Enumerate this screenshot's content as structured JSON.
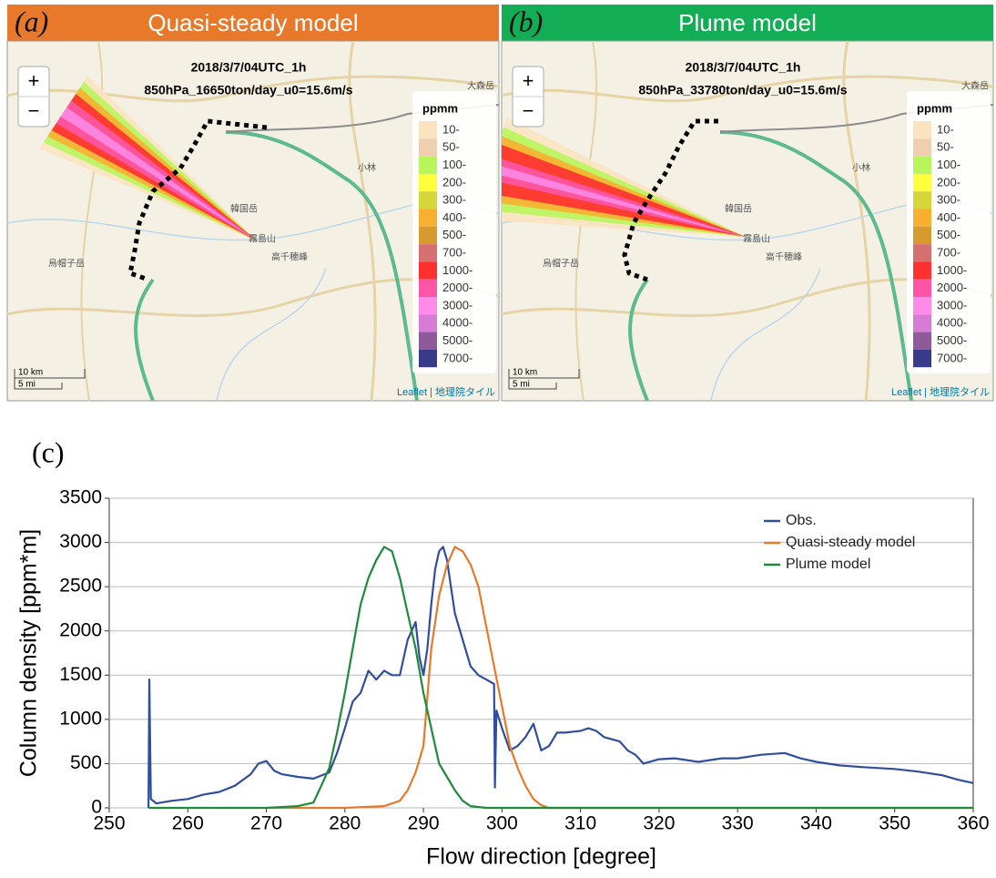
{
  "panels": [
    {
      "label": "(a)",
      "title": "Quasi-steady model",
      "header_color": "#e8792a",
      "line1": "2018/3/7/04UTC_1h",
      "line2": "850hPa_16650ton/day_u0=15.6m/s"
    },
    {
      "label": "(b)",
      "title": "Plume model",
      "header_color": "#12ad55",
      "line1": "2018/3/7/04UTC_1h",
      "line2": "850hPa_33780ton/day_u0=15.6m/s"
    }
  ],
  "map_text": {
    "zoom_in": "+",
    "zoom_out": "−",
    "scale_km": "10 km",
    "scale_mi": "5 mi",
    "attribution": "Leaflet | 地理院タイル",
    "places": [
      "大森岳",
      "韓国岳",
      "霧島山",
      "高千穂峰",
      "烏帽子岳",
      "小林"
    ]
  },
  "map_legend": {
    "title": "ppmm",
    "items": [
      {
        "label": "10-",
        "color": "#fbe3c0"
      },
      {
        "label": "50-",
        "color": "#efcfb0"
      },
      {
        "label": "100-",
        "color": "#b8f55c"
      },
      {
        "label": "200-",
        "color": "#ffff3c"
      },
      {
        "label": "300-",
        "color": "#d6d63a"
      },
      {
        "label": "400-",
        "color": "#f9b030"
      },
      {
        "label": "500-",
        "color": "#d79a2e"
      },
      {
        "label": "700-",
        "color": "#d67070"
      },
      {
        "label": "1000-",
        "color": "#ff3030"
      },
      {
        "label": "2000-",
        "color": "#ff55a8"
      },
      {
        "label": "3000-",
        "color": "#ff8ae8"
      },
      {
        "label": "4000-",
        "color": "#d67cd6"
      },
      {
        "label": "5000-",
        "color": "#8e5a9a"
      },
      {
        "label": "7000-",
        "color": "#3a3a8a"
      }
    ]
  },
  "chart_label": "(c)",
  "chart_data": {
    "type": "line",
    "xlabel": "Flow direction  [degree]",
    "ylabel": "Column  density  [ppm*m]",
    "xlim": [
      250,
      360
    ],
    "ylim": [
      0,
      3500
    ],
    "xticks": [
      250,
      260,
      270,
      280,
      290,
      300,
      310,
      320,
      330,
      340,
      350,
      360
    ],
    "yticks": [
      0,
      500,
      1000,
      1500,
      2000,
      2500,
      3000,
      3500
    ],
    "grid": true,
    "legend": "upper right",
    "series": [
      {
        "name": "Obs.",
        "color": "#2f4f9e",
        "x": [
          255,
          255.1,
          255.3,
          256,
          258,
          260,
          262,
          264,
          266,
          268,
          269,
          270,
          271,
          272,
          274,
          276,
          278,
          279,
          280,
          281,
          282,
          283,
          284,
          285,
          286,
          287,
          288,
          289,
          289.5,
          290,
          290.5,
          291,
          291.5,
          292,
          292.5,
          293,
          293.5,
          294,
          295,
          296,
          297,
          298,
          299,
          299.1,
          299.3,
          300,
          301,
          302,
          303,
          304,
          305,
          306,
          307,
          308,
          310,
          311,
          312,
          313,
          315,
          316,
          317,
          318,
          320,
          322,
          325,
          328,
          330,
          333,
          336,
          338,
          340,
          343,
          346,
          350,
          353,
          356,
          358,
          360
        ],
        "values": [
          0,
          1450,
          100,
          50,
          80,
          100,
          150,
          180,
          250,
          380,
          500,
          530,
          420,
          380,
          350,
          330,
          400,
          620,
          900,
          1200,
          1300,
          1550,
          1450,
          1550,
          1500,
          1500,
          1900,
          2100,
          1700,
          1500,
          1800,
          2300,
          2700,
          2900,
          2950,
          2800,
          2500,
          2200,
          1900,
          1600,
          1500,
          1450,
          1400,
          230,
          1100,
          900,
          650,
          700,
          800,
          950,
          650,
          700,
          850,
          850,
          870,
          900,
          870,
          800,
          750,
          650,
          600,
          500,
          550,
          560,
          520,
          560,
          560,
          600,
          620,
          560,
          520,
          480,
          460,
          440,
          410,
          370,
          320,
          280
        ]
      },
      {
        "name": "Quasi-steady model",
        "color": "#e8792a",
        "x": [
          270,
          280,
          285,
          287,
          288,
          289,
          290,
          291,
          292,
          293,
          294,
          295,
          296,
          297,
          298,
          299,
          300,
          301,
          302,
          303,
          304,
          305,
          306,
          360
        ],
        "values": [
          0,
          0,
          20,
          80,
          200,
          400,
          700,
          1800,
          2400,
          2750,
          2950,
          2900,
          2750,
          2500,
          2050,
          1600,
          1150,
          700,
          450,
          250,
          100,
          30,
          0,
          0
        ]
      },
      {
        "name": "Plume model",
        "color": "#1f8a3c",
        "x": [
          255,
          270,
          274,
          276,
          277,
          278,
          279,
          280,
          281,
          282,
          283,
          284,
          285,
          286,
          287,
          288,
          289,
          290,
          291,
          292,
          293,
          294,
          295,
          296,
          298,
          360
        ],
        "values": [
          0,
          0,
          20,
          60,
          250,
          450,
          850,
          1300,
          1800,
          2300,
          2600,
          2800,
          2950,
          2900,
          2600,
          2200,
          1800,
          1300,
          900,
          500,
          350,
          200,
          80,
          20,
          0,
          0
        ]
      }
    ]
  }
}
